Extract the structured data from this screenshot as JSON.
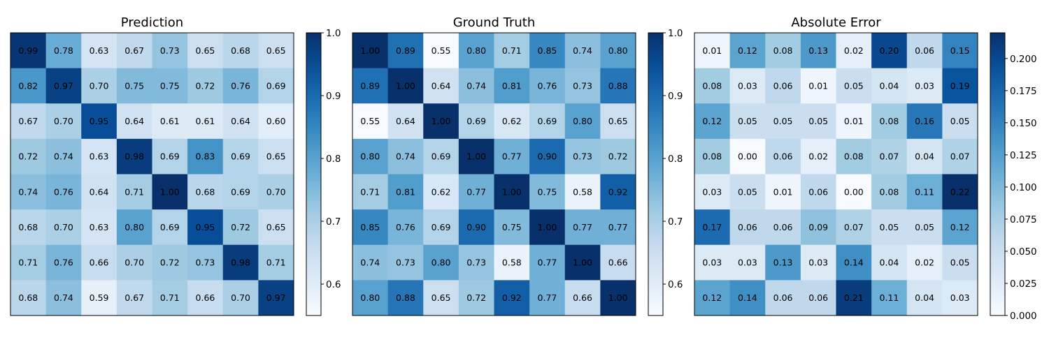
{
  "chart_data": [
    {
      "type": "heatmap",
      "title": "Prediction",
      "colormap": "Blues",
      "vmin": 0.55,
      "vmax": 1.0,
      "colorbar_ticks": [
        0.6,
        0.7,
        0.8,
        0.9,
        1.0
      ],
      "colorbar_tick_labels": [
        "0.6",
        "0.7",
        "0.8",
        "0.9",
        "1.0"
      ],
      "values": [
        [
          0.99,
          0.78,
          0.63,
          0.67,
          0.73,
          0.65,
          0.68,
          0.65
        ],
        [
          0.82,
          0.97,
          0.7,
          0.75,
          0.75,
          0.72,
          0.76,
          0.69
        ],
        [
          0.67,
          0.7,
          0.95,
          0.64,
          0.61,
          0.61,
          0.64,
          0.6
        ],
        [
          0.72,
          0.74,
          0.63,
          0.98,
          0.69,
          0.83,
          0.69,
          0.65
        ],
        [
          0.74,
          0.76,
          0.64,
          0.71,
          1.0,
          0.68,
          0.69,
          0.7
        ],
        [
          0.68,
          0.7,
          0.63,
          0.8,
          0.69,
          0.95,
          0.72,
          0.65
        ],
        [
          0.71,
          0.76,
          0.66,
          0.7,
          0.72,
          0.73,
          0.98,
          0.71
        ],
        [
          0.68,
          0.74,
          0.59,
          0.67,
          0.71,
          0.66,
          0.7,
          0.97
        ]
      ]
    },
    {
      "type": "heatmap",
      "title": "Ground Truth",
      "colormap": "Blues",
      "vmin": 0.55,
      "vmax": 1.0,
      "colorbar_ticks": [
        0.6,
        0.7,
        0.8,
        0.9,
        1.0
      ],
      "colorbar_tick_labels": [
        "0.6",
        "0.7",
        "0.8",
        "0.9",
        "1.0"
      ],
      "values": [
        [
          1.0,
          0.89,
          0.55,
          0.8,
          0.71,
          0.85,
          0.74,
          0.8
        ],
        [
          0.89,
          1.0,
          0.64,
          0.74,
          0.81,
          0.76,
          0.73,
          0.88
        ],
        [
          0.55,
          0.64,
          1.0,
          0.69,
          0.62,
          0.69,
          0.8,
          0.65
        ],
        [
          0.8,
          0.74,
          0.69,
          1.0,
          0.77,
          0.9,
          0.73,
          0.72
        ],
        [
          0.71,
          0.81,
          0.62,
          0.77,
          1.0,
          0.75,
          0.58,
          0.92
        ],
        [
          0.85,
          0.76,
          0.69,
          0.9,
          0.75,
          1.0,
          0.77,
          0.77
        ],
        [
          0.74,
          0.73,
          0.8,
          0.73,
          0.58,
          0.77,
          1.0,
          0.66
        ],
        [
          0.8,
          0.88,
          0.65,
          0.72,
          0.92,
          0.77,
          0.66,
          1.0
        ]
      ]
    },
    {
      "type": "heatmap",
      "title": "Absolute Error",
      "colormap": "Blues",
      "vmin": 0.0,
      "vmax": 0.22,
      "colorbar_ticks": [
        0.0,
        0.025,
        0.05,
        0.075,
        0.1,
        0.125,
        0.15,
        0.175,
        0.2
      ],
      "colorbar_tick_labels": [
        "0.000",
        "0.025",
        "0.050",
        "0.075",
        "0.100",
        "0.125",
        "0.150",
        "0.175",
        "0.200"
      ],
      "values": [
        [
          0.01,
          0.12,
          0.08,
          0.13,
          0.02,
          0.2,
          0.06,
          0.15
        ],
        [
          0.08,
          0.03,
          0.06,
          0.01,
          0.05,
          0.04,
          0.03,
          0.19
        ],
        [
          0.12,
          0.05,
          0.05,
          0.05,
          0.01,
          0.08,
          0.16,
          0.05
        ],
        [
          0.08,
          0.0,
          0.06,
          0.02,
          0.08,
          0.07,
          0.04,
          0.07
        ],
        [
          0.03,
          0.05,
          0.01,
          0.06,
          0.0,
          0.08,
          0.11,
          0.22
        ],
        [
          0.17,
          0.06,
          0.06,
          0.09,
          0.07,
          0.05,
          0.05,
          0.12
        ],
        [
          0.03,
          0.03,
          0.13,
          0.03,
          0.14,
          0.04,
          0.02,
          0.05
        ],
        [
          0.12,
          0.14,
          0.06,
          0.06,
          0.21,
          0.11,
          0.04,
          0.03
        ]
      ]
    }
  ]
}
